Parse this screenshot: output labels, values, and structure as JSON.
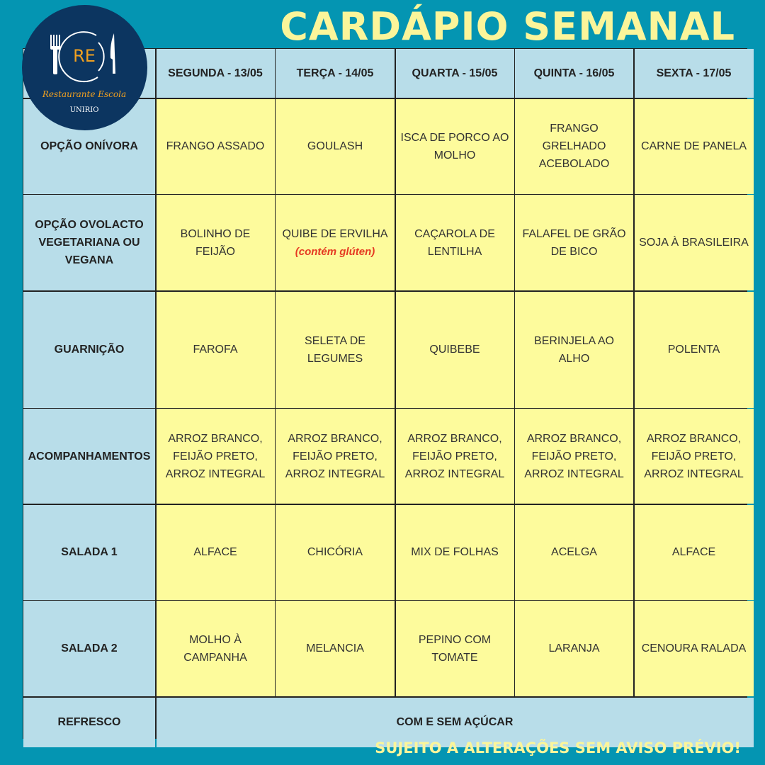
{
  "title": "CARDÁPIO SEMANAL",
  "footer": "SUJEITO A ALTERAÇÕES SEM AVISO PRÉVIO!",
  "logo": {
    "monogram": "RE",
    "name": "Restaurante Escola",
    "org": "UNIRIO"
  },
  "colors": {
    "background": "#0495b2",
    "header": "#b8dde9",
    "cell": "#fdfb9c",
    "title": "#fbf59a",
    "note": "#e53a22",
    "logo": "#0c3560"
  },
  "days": [
    "SEGUNDA - 13/05",
    "TERÇA - 14/05",
    "QUARTA - 15/05",
    "QUINTA - 16/05",
    "SEXTA - 17/05"
  ],
  "rows": [
    {
      "label": "OPÇÃO ONÍVORA",
      "items": [
        "FRANGO ASSADO",
        "GOULASH",
        "ISCA DE PORCO AO MOLHO",
        "FRANGO GRELHADO ACEBOLADO",
        "CARNE DE PANELA"
      ]
    },
    {
      "label": "OPÇÃO OVOLACTO VEGETARIANA OU VEGANA",
      "items": [
        "BOLINHO DE FEIJÃO",
        "QUIBE DE ERVILHA",
        "CAÇAROLA DE LENTILHA",
        "FALAFEL DE GRÃO DE BICO",
        "SOJA À BRASILEIRA"
      ],
      "note": "(contém glúten)"
    },
    {
      "label": "GUARNIÇÃO",
      "items": [
        "FAROFA",
        "SELETA DE LEGUMES",
        "QUIBEBE",
        "BERINJELA AO ALHO",
        "POLENTA"
      ]
    },
    {
      "label": "ACOMPANHAMENTOS",
      "items": [
        "ARROZ BRANCO, FEIJÃO PRETO, ARROZ INTEGRAL",
        "ARROZ BRANCO, FEIJÃO PRETO, ARROZ INTEGRAL",
        "ARROZ BRANCO, FEIJÃO PRETO, ARROZ INTEGRAL",
        "ARROZ BRANCO, FEIJÃO PRETO, ARROZ INTEGRAL",
        "ARROZ BRANCO, FEIJÃO PRETO, ARROZ INTEGRAL"
      ]
    },
    {
      "label": "SALADA 1",
      "items": [
        "ALFACE",
        "CHICÓRIA",
        "MIX DE FOLHAS",
        "ACELGA",
        "ALFACE"
      ]
    },
    {
      "label": "SALADA 2",
      "items": [
        "MOLHO À CAMPANHA",
        "MELANCIA",
        "PEPINO COM TOMATE",
        "LARANJA",
        "CENOURA RALADA"
      ]
    }
  ],
  "refresco": {
    "label": "REFRESCO",
    "value": "COM E SEM AÇÚCAR"
  }
}
